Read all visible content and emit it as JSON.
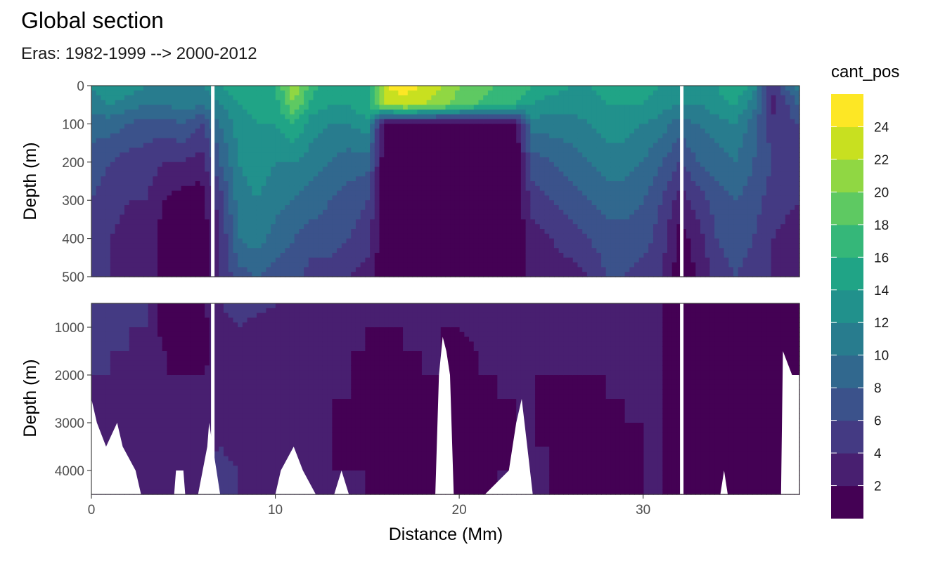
{
  "chart_data": {
    "type": "heatmap",
    "title": "Global section",
    "subtitle": "Eras: 1982-1999 --> 2000-2012",
    "xlabel": "Distance (Mm)",
    "ylabel": "Depth (m)",
    "xlim": [
      0,
      38.5
    ],
    "x_ticks": [
      0,
      10,
      20,
      30
    ],
    "panels": [
      {
        "name": "upper",
        "ylim": [
          0,
          500
        ],
        "y_ticks": [
          0,
          100,
          200,
          300,
          400,
          500
        ]
      },
      {
        "name": "lower",
        "ylim": [
          500,
          4500
        ],
        "y_ticks": [
          1000,
          2000,
          3000,
          4000
        ]
      }
    ],
    "legend": {
      "title": "cant_pos",
      "position": "right",
      "breaks": [
        0,
        2,
        4,
        6,
        8,
        10,
        12,
        14,
        16,
        18,
        20,
        22,
        24,
        26
      ],
      "labels": [
        "2",
        "4",
        "6",
        "8",
        "10",
        "12",
        "14",
        "16",
        "18",
        "20",
        "22",
        "24"
      ],
      "colors": [
        "#440154",
        "#481F70",
        "#443A83",
        "#3B528B",
        "#31688E",
        "#287C8E",
        "#21918C",
        "#20A486",
        "#35B779",
        "#5EC962",
        "#90D743",
        "#C8E020",
        "#FDE725"
      ]
    },
    "gaps_x": [
      6.6,
      32.1
    ],
    "columns_x": [
      0,
      1,
      2,
      3,
      4,
      5,
      6,
      7,
      8,
      9,
      10,
      11,
      12,
      13,
      14,
      15,
      16,
      17,
      18,
      19,
      20,
      21,
      22,
      23,
      24,
      25,
      26,
      27,
      28,
      29,
      30,
      31,
      32,
      33,
      34,
      35,
      36,
      37,
      38.5
    ],
    "upper_depths": [
      0,
      50,
      100,
      200,
      300,
      400,
      500
    ],
    "upper_values": [
      [
        12,
        11,
        9,
        7,
        6,
        6,
        5
      ],
      [
        14,
        12,
        9,
        6,
        5,
        4,
        4
      ],
      [
        13,
        11,
        8,
        5,
        4,
        3,
        3
      ],
      [
        12,
        10,
        7,
        5,
        4,
        3,
        3
      ],
      [
        12,
        10,
        7,
        4,
        2,
        1,
        1
      ],
      [
        12,
        11,
        8,
        4,
        1,
        1,
        1
      ],
      [
        12,
        10,
        6,
        3,
        1,
        1,
        1
      ],
      [
        14,
        12,
        10,
        8,
        5,
        4,
        4
      ],
      [
        15,
        14,
        13,
        12,
        11,
        10,
        7
      ],
      [
        16,
        15,
        14,
        13,
        12,
        11,
        8
      ],
      [
        16,
        15,
        14,
        12,
        11,
        9,
        7
      ],
      [
        22,
        20,
        16,
        12,
        10,
        8,
        7
      ],
      [
        17,
        15,
        13,
        11,
        9,
        7,
        5
      ],
      [
        15,
        14,
        12,
        10,
        8,
        7,
        5
      ],
      [
        14,
        14,
        12,
        9,
        7,
        6,
        4
      ],
      [
        15,
        16,
        13,
        9,
        6,
        5,
        3
      ],
      [
        24,
        22,
        0,
        0,
        0,
        0,
        0
      ],
      [
        25,
        23,
        0,
        0,
        0,
        0,
        0
      ],
      [
        24,
        22,
        0,
        0,
        0,
        0,
        0
      ],
      [
        22,
        21,
        0,
        0,
        0,
        0,
        0
      ],
      [
        20,
        19,
        0,
        0,
        0,
        0,
        0
      ],
      [
        19,
        18,
        0,
        0,
        0,
        0,
        0
      ],
      [
        18,
        17,
        0,
        0,
        0,
        0,
        0
      ],
      [
        18,
        16,
        0,
        0,
        0,
        0,
        0
      ],
      [
        16,
        14,
        11,
        7,
        5,
        3,
        3
      ],
      [
        15,
        13,
        11,
        8,
        6,
        4,
        3
      ],
      [
        14,
        13,
        11,
        9,
        7,
        5,
        3
      ],
      [
        14,
        13,
        12,
        10,
        8,
        6,
        4
      ],
      [
        15,
        14,
        13,
        11,
        9,
        7,
        6
      ],
      [
        15,
        14,
        13,
        11,
        9,
        7,
        6
      ],
      [
        15,
        14,
        12,
        10,
        8,
        7,
        5
      ],
      [
        14,
        13,
        11,
        8,
        6,
        5,
        4
      ],
      [
        13,
        12,
        9,
        6,
        3,
        1,
        1
      ],
      [
        13,
        12,
        10,
        8,
        5,
        3,
        2
      ],
      [
        14,
        13,
        11,
        9,
        7,
        6,
        5
      ],
      [
        16,
        14,
        12,
        10,
        8,
        7,
        6
      ],
      [
        13,
        11,
        9,
        8,
        7,
        6,
        5
      ],
      [
        4,
        3,
        5,
        6,
        5,
        4,
        4
      ],
      [
        12,
        8,
        6,
        5,
        4,
        3,
        3
      ]
    ],
    "lower_depths": [
      500,
      1000,
      1500,
      2000,
      2500,
      3000,
      3500,
      4000,
      4500
    ],
    "lower_values": [
      [
        6,
        5,
        5,
        4,
        3,
        3,
        3,
        3,
        3
      ],
      [
        6,
        5,
        4,
        4,
        3,
        3,
        3,
        3,
        3
      ],
      [
        5,
        4,
        4,
        3,
        3,
        3,
        3,
        3,
        3
      ],
      [
        4,
        4,
        3,
        3,
        3,
        3,
        3,
        3,
        3
      ],
      [
        1,
        1,
        2,
        2,
        3,
        3,
        3,
        3,
        3
      ],
      [
        1,
        1,
        1,
        2,
        2,
        3,
        3,
        3,
        3
      ],
      [
        2,
        1,
        1,
        2,
        2,
        2,
        3,
        3,
        3
      ],
      [
        4,
        3,
        3,
        3,
        3,
        4,
        4,
        5,
        5
      ],
      [
        5,
        4,
        3,
        3,
        3,
        3,
        3,
        4,
        4
      ],
      [
        5,
        3,
        3,
        2,
        2,
        3,
        3,
        3,
        3
      ],
      [
        4,
        3,
        2,
        2,
        2,
        2,
        3,
        3,
        3
      ],
      [
        4,
        3,
        2,
        2,
        2,
        2,
        2,
        3,
        3
      ],
      [
        3,
        3,
        2,
        2,
        2,
        2,
        2,
        3,
        3
      ],
      [
        3,
        3,
        2,
        2,
        2,
        2,
        2,
        2,
        3
      ],
      [
        3,
        2,
        2,
        2,
        2,
        1,
        1,
        2,
        2
      ],
      [
        3,
        2,
        2,
        1,
        1,
        1,
        1,
        2,
        2
      ],
      [
        2,
        2,
        1,
        1,
        1,
        1,
        1,
        1,
        1
      ],
      [
        2,
        2,
        2,
        1,
        1,
        1,
        1,
        1,
        1
      ],
      [
        2,
        2,
        2,
        2,
        1,
        1,
        1,
        1,
        1
      ],
      [
        2,
        2,
        2,
        2,
        2,
        1,
        1,
        1,
        1
      ],
      [
        3,
        2,
        1,
        1,
        1,
        1,
        1,
        1,
        1
      ],
      [
        3,
        3,
        2,
        2,
        1,
        1,
        1,
        1,
        1
      ],
      [
        3,
        3,
        2,
        2,
        2,
        1,
        1,
        2,
        2
      ],
      [
        4,
        3,
        3,
        2,
        2,
        2,
        2,
        2,
        2
      ],
      [
        4,
        3,
        2,
        2,
        2,
        2,
        2,
        2,
        2
      ],
      [
        4,
        2,
        2,
        2,
        1,
        1,
        2,
        2,
        2
      ],
      [
        4,
        3,
        2,
        2,
        1,
        1,
        1,
        1,
        1
      ],
      [
        4,
        3,
        2,
        2,
        1,
        1,
        1,
        1,
        1
      ],
      [
        3,
        3,
        2,
        2,
        2,
        1,
        1,
        1,
        1
      ],
      [
        3,
        3,
        2,
        2,
        2,
        2,
        1,
        1,
        1
      ],
      [
        3,
        2,
        2,
        2,
        2,
        2,
        2,
        2,
        2
      ],
      [
        2,
        2,
        2,
        2,
        2,
        2,
        2,
        2,
        2
      ],
      [
        1,
        1,
        1,
        1,
        1,
        1,
        1,
        1,
        1
      ],
      [
        1,
        1,
        1,
        1,
        1,
        1,
        1,
        1,
        1
      ],
      [
        1,
        1,
        1,
        1,
        1,
        1,
        1,
        1,
        1
      ],
      [
        1,
        1,
        1,
        1,
        1,
        1,
        1,
        1,
        1
      ],
      [
        1,
        1,
        1,
        1,
        1,
        1,
        1,
        1,
        1
      ],
      [
        1,
        1,
        1,
        1,
        1,
        1,
        1,
        1,
        1
      ],
      [
        1,
        1,
        1,
        1,
        1,
        1,
        1,
        1,
        1
      ]
    ],
    "bottom_depth": [
      [
        0,
        2500
      ],
      [
        0.3,
        3000
      ],
      [
        0.8,
        3500
      ],
      [
        1.4,
        3000
      ],
      [
        1.7,
        3500
      ],
      [
        2.4,
        4000
      ],
      [
        2.7,
        4500
      ],
      [
        4.5,
        4500
      ],
      [
        4.6,
        4000
      ],
      [
        5.0,
        4000
      ],
      [
        5.1,
        4500
      ],
      [
        5.8,
        4500
      ],
      [
        6.3,
        3500
      ],
      [
        6.4,
        3000
      ],
      [
        7.0,
        4500
      ],
      [
        10.0,
        4500
      ],
      [
        10.3,
        4000
      ],
      [
        11.0,
        3500
      ],
      [
        11.5,
        4000
      ],
      [
        12.2,
        4500
      ],
      [
        13.2,
        4500
      ],
      [
        13.6,
        4000
      ],
      [
        14.0,
        4500
      ],
      [
        18.7,
        4500
      ],
      [
        18.9,
        2000
      ],
      [
        19.1,
        1200
      ],
      [
        19.3,
        1500
      ],
      [
        19.5,
        2000
      ],
      [
        19.7,
        4500
      ],
      [
        21.0,
        4500
      ],
      [
        21.4,
        4500
      ],
      [
        22.7,
        4000
      ],
      [
        23.1,
        3000
      ],
      [
        23.4,
        2500
      ],
      [
        23.7,
        3500
      ],
      [
        24.0,
        4500
      ],
      [
        25.2,
        4500
      ],
      [
        25.5,
        4500
      ],
      [
        26.4,
        4500
      ],
      [
        26.5,
        4500
      ],
      [
        27.3,
        4500
      ],
      [
        27.6,
        4500
      ],
      [
        28.7,
        4500
      ],
      [
        31.8,
        4500
      ],
      [
        34.2,
        4500
      ],
      [
        34.4,
        4000
      ],
      [
        34.6,
        4500
      ],
      [
        37.5,
        4500
      ],
      [
        37.6,
        1500
      ],
      [
        37.9,
        1800
      ],
      [
        38.1,
        2000
      ],
      [
        38.5,
        2000
      ]
    ]
  }
}
